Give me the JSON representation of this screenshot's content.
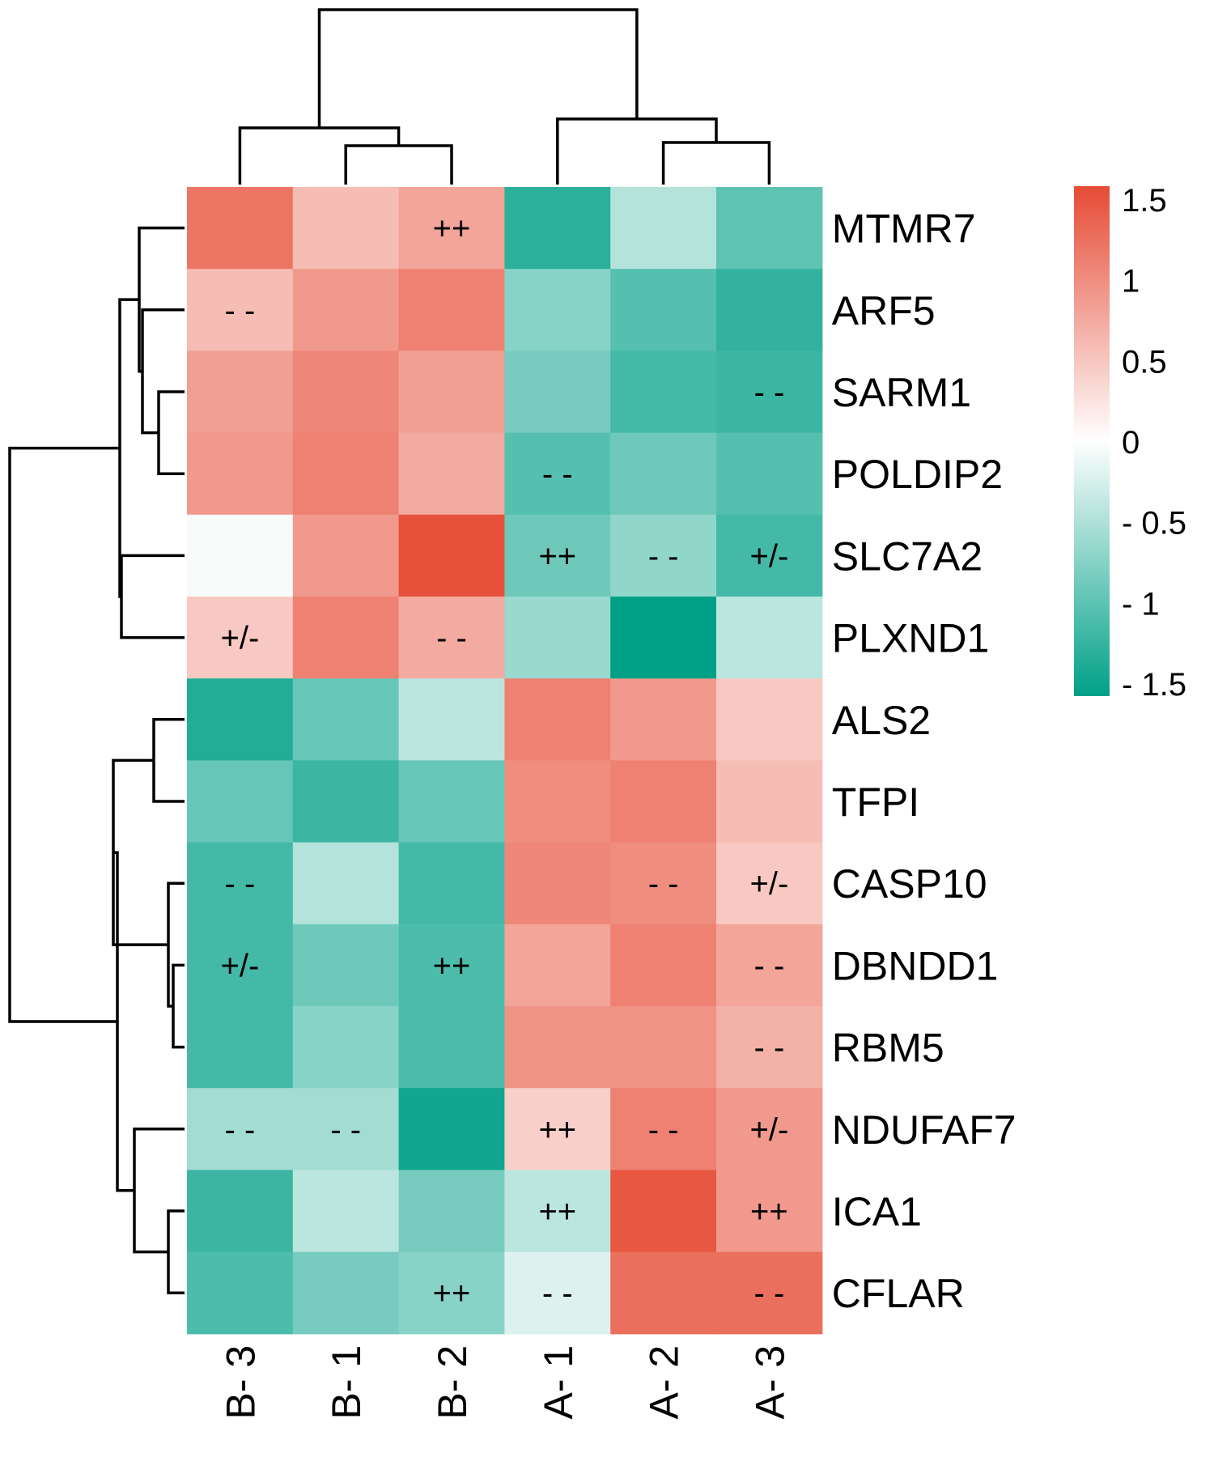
{
  "chart_data": {
    "type": "heatmap",
    "title": "",
    "columns": [
      "B- 3",
      "B- 1",
      "B- 2",
      "A- 1",
      "A- 2",
      "A- 3"
    ],
    "rows": [
      "MTMR7",
      "ARF5",
      "SARM1",
      "POLDIP2",
      "SLC7A2",
      "PLXND1",
      "ALS2",
      "TFPI",
      "CASP10",
      "DBNDD1",
      "RBM5",
      "NDUFAF7",
      "ICA1",
      "CFLAR"
    ],
    "values": [
      [
        1.15,
        0.55,
        0.75,
        -1.25,
        -0.45,
        -0.95
      ],
      [
        0.55,
        0.85,
        1.05,
        -0.7,
        -1.0,
        -1.2
      ],
      [
        0.8,
        1.0,
        0.8,
        -0.8,
        -1.1,
        -1.15
      ],
      [
        0.85,
        1.05,
        0.7,
        -1.0,
        -0.85,
        -1.0
      ],
      [
        -0.05,
        0.85,
        1.45,
        -0.85,
        -0.65,
        -1.1
      ],
      [
        0.45,
        1.05,
        0.7,
        -0.6,
        -1.5,
        -0.4
      ],
      [
        -1.3,
        -0.9,
        -0.4,
        1.05,
        0.85,
        0.45
      ],
      [
        -0.9,
        -1.15,
        -0.9,
        0.95,
        1.05,
        0.55
      ],
      [
        -1.1,
        -0.45,
        -1.1,
        1.0,
        0.95,
        0.45
      ],
      [
        -1.1,
        -0.85,
        -1.05,
        0.75,
        1.05,
        0.75
      ],
      [
        -1.1,
        -0.7,
        -1.05,
        0.9,
        0.9,
        0.65
      ],
      [
        -0.55,
        -0.55,
        -1.4,
        0.4,
        1.05,
        0.85
      ],
      [
        -1.15,
        -0.4,
        -0.8,
        -0.4,
        1.4,
        0.85
      ],
      [
        -1.05,
        -0.8,
        -0.7,
        -0.2,
        1.2,
        1.2
      ]
    ],
    "annotations": [
      [
        "",
        "",
        "++",
        "",
        "",
        ""
      ],
      [
        "- -",
        "",
        "",
        "",
        "",
        ""
      ],
      [
        "",
        "",
        "",
        "",
        "",
        "- -"
      ],
      [
        "",
        "",
        "",
        "- -",
        "",
        ""
      ],
      [
        "",
        "",
        "",
        "++",
        "- -",
        "+/-"
      ],
      [
        "+/-",
        "",
        "- -",
        "",
        "",
        ""
      ],
      [
        "",
        "",
        "",
        "",
        "",
        ""
      ],
      [
        "",
        "",
        "",
        "",
        "",
        ""
      ],
      [
        "- -",
        "",
        "",
        "",
        "- -",
        "+/-"
      ],
      [
        "+/-",
        "",
        "++",
        "",
        "",
        "- -"
      ],
      [
        "",
        "",
        "",
        "",
        "",
        "- -"
      ],
      [
        "- -",
        "- -",
        "",
        "++",
        "- -",
        "+/-"
      ],
      [
        "",
        "",
        "",
        "++",
        "",
        "++"
      ],
      [
        "",
        "",
        "++",
        "- -",
        "",
        "- -"
      ]
    ],
    "color_scale": {
      "min": -1.5,
      "mid": 0,
      "max": 1.5,
      "low_color": "#00A087",
      "mid_color": "#FFFFFF",
      "high_color": "#E64B35"
    },
    "legend": {
      "placement": "right",
      "ticks": [
        1.5,
        1,
        0.5,
        0,
        -0.5,
        -1,
        -1.5
      ],
      "tick_labels": [
        "1.5",
        "1",
        "0.5",
        "0",
        "- 0.5",
        "- 1",
        "- 1.5"
      ]
    },
    "column_dendrogram": {
      "merges": [
        {
          "left": "B- 1",
          "right": "B- 2"
        },
        {
          "left": "A- 2",
          "right": "A- 3"
        },
        {
          "left": "B- 3",
          "right": "(B- 1, B- 2)"
        },
        {
          "left": "A- 1",
          "right": "(A- 2, A- 3)"
        },
        {
          "left": "B cluster",
          "right": "A cluster"
        }
      ]
    },
    "row_dendrogram": {
      "clusters": [
        [
          "MTMR7",
          "ARF5",
          "SARM1",
          "POLDIP2",
          "SLC7A2",
          "PLXND1"
        ],
        [
          "ALS2",
          "TFPI",
          "CASP10",
          "DBNDD1",
          "RBM5",
          "NDUFAF7",
          "ICA1",
          "CFLAR"
        ]
      ]
    },
    "xlabel": "",
    "ylabel": ""
  }
}
